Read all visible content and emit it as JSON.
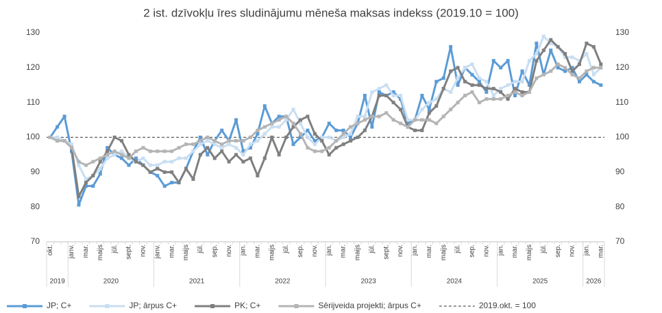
{
  "chart_data": {
    "type": "line",
    "title": "2 ist. dzīvokļu īres sludinājumu mēneša maksas indekss (2019.10 = 100)",
    "categories": [
      "okt.",
      null,
      null,
      "janv.",
      null,
      "mar.",
      null,
      "maijs",
      null,
      "jūl.",
      null,
      "sept.",
      null,
      "nov.",
      null,
      "janv.",
      null,
      "mar.",
      null,
      "maijs",
      null,
      "jūl.",
      null,
      "sep.",
      null,
      "nov.",
      null,
      "jan.",
      null,
      "mar.",
      null,
      "maijs",
      null,
      "jūl.",
      null,
      "sep.",
      null,
      "nov.",
      null,
      "jan.",
      null,
      "mar.",
      null,
      "maijs",
      null,
      "jūl.",
      null,
      "sept.",
      null,
      "nov.",
      null,
      "jan.",
      null,
      "mar.",
      null,
      "maijs",
      null,
      "jūl.",
      null,
      "sep.",
      null,
      "nov.",
      null,
      "jan.",
      null,
      "mar.",
      null,
      "maijs",
      null,
      "jūl.",
      null,
      "sep.",
      null,
      "nov.",
      null,
      "jan.",
      null,
      "mar."
    ],
    "years": [
      "2019",
      "2020",
      "2021",
      "2022",
      "2023",
      "2024",
      "2025",
      "2026"
    ],
    "series": [
      {
        "name": "JP; C+",
        "color": "#5b9bd5",
        "values": [
          100,
          103,
          106,
          96,
          80.6,
          86,
          86,
          89.5,
          97,
          95,
          94,
          92,
          94,
          92,
          90,
          89,
          86,
          87,
          87,
          91,
          96,
          100,
          95,
          99,
          102,
          99,
          105,
          96,
          97,
          101,
          109,
          104,
          106,
          106,
          98,
          100,
          102,
          99,
          100,
          104,
          102,
          102,
          100,
          104,
          112,
          103,
          113,
          112,
          113,
          111,
          104,
          105,
          112,
          108,
          116,
          117,
          126,
          115,
          120,
          118,
          116,
          113,
          122,
          120,
          122,
          112,
          119,
          115,
          127,
          118,
          125,
          120,
          119,
          120,
          116,
          118,
          116,
          115
        ]
      },
      {
        "name": "JP; ārpus C+",
        "color": "#c9def2",
        "values": [
          100,
          100,
          99,
          98,
          92,
          88,
          89,
          91,
          94,
          95,
          96,
          94,
          93,
          94,
          92,
          92,
          93,
          93,
          94,
          94,
          96,
          98,
          99,
          98,
          97,
          98,
          97,
          95,
          98,
          99,
          101,
          103,
          103,
          105,
          108,
          104,
          100,
          98,
          100,
          100,
          99,
          100,
          101,
          106,
          106,
          113,
          114,
          115,
          112,
          112,
          105,
          105,
          108,
          110,
          111,
          114,
          113,
          117,
          120,
          121,
          117,
          116,
          112,
          114,
          115,
          116,
          116,
          122,
          124,
          129,
          127,
          126,
          123,
          123,
          122,
          124,
          118,
          120
        ]
      },
      {
        "name": "PK; C+",
        "color": "#7f7f7f",
        "values": [
          100,
          99,
          99,
          97,
          83,
          87,
          89,
          93,
          96,
          100,
          99,
          95,
          93,
          92,
          90,
          91,
          90,
          90,
          87,
          91,
          88,
          95,
          97,
          94,
          96,
          93,
          95,
          93,
          94,
          89,
          94,
          100,
          95,
          100,
          103,
          105,
          106,
          101,
          99,
          95,
          97,
          98,
          99,
          100,
          102,
          106,
          112,
          112,
          110,
          108,
          103,
          102,
          102,
          107,
          109,
          114,
          119,
          120,
          116,
          115,
          115,
          114,
          114,
          113,
          111,
          114,
          113,
          113,
          122,
          125,
          128,
          126,
          124,
          119,
          121,
          127,
          126,
          121
        ]
      },
      {
        "name": "Sērijveida projekti; ārpus C+",
        "color": "#b4b4b4",
        "values": [
          100,
          99,
          99,
          97,
          93,
          92,
          93,
          94,
          95,
          96,
          95,
          94,
          96,
          97,
          96,
          96,
          96,
          96,
          97,
          98,
          98,
          99,
          100,
          99,
          98,
          99,
          99,
          99,
          100,
          102,
          103,
          104,
          105,
          106,
          104,
          101,
          97,
          96,
          96,
          97,
          99,
          101,
          103,
          104,
          105,
          106,
          106,
          107,
          105,
          104,
          103,
          105,
          105,
          105,
          104,
          106,
          108,
          110,
          112,
          113,
          110,
          111,
          111,
          111,
          112,
          113,
          112,
          113,
          117,
          118,
          119,
          121,
          120,
          118,
          117,
          119,
          120,
          120
        ]
      }
    ],
    "reference_line": {
      "value": 100,
      "label": "2019.okt. = 100",
      "color": "#595959"
    },
    "ylim": [
      70,
      130
    ],
    "yticks": [
      70,
      80,
      90,
      100,
      110,
      120,
      130
    ],
    "y2lim": [
      70,
      130
    ],
    "y2ticks": [
      70,
      80,
      90,
      100,
      110,
      120,
      130
    ],
    "legend": "bottom"
  }
}
